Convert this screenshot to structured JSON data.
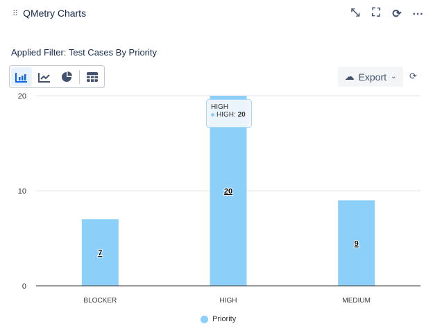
{
  "header": {
    "title": "QMetry Charts",
    "icons": [
      "minimize-icon",
      "fullscreen-icon",
      "refresh-icon",
      "more-icon"
    ]
  },
  "filter_label": "Applied Filter: Test Cases By Priority",
  "chart_types": [
    "bar-chart-icon",
    "line-chart-icon",
    "pie-chart-icon",
    "table-icon"
  ],
  "export_label": "Export",
  "tooltip": {
    "title": "HIGH",
    "label": "HIGH:",
    "value": "20"
  },
  "colors": {
    "bar": "#8ccff9",
    "accent": "#0c66e4"
  },
  "chart_data": {
    "type": "bar",
    "categories": [
      "BLOCKER",
      "HIGH",
      "MEDIUM"
    ],
    "series": [
      {
        "name": "Priority",
        "values": [
          7,
          20,
          9
        ]
      }
    ],
    "ylim": [
      0,
      20
    ],
    "yticks": [
      0,
      10,
      20
    ],
    "grid": true,
    "legend": "bottom"
  }
}
